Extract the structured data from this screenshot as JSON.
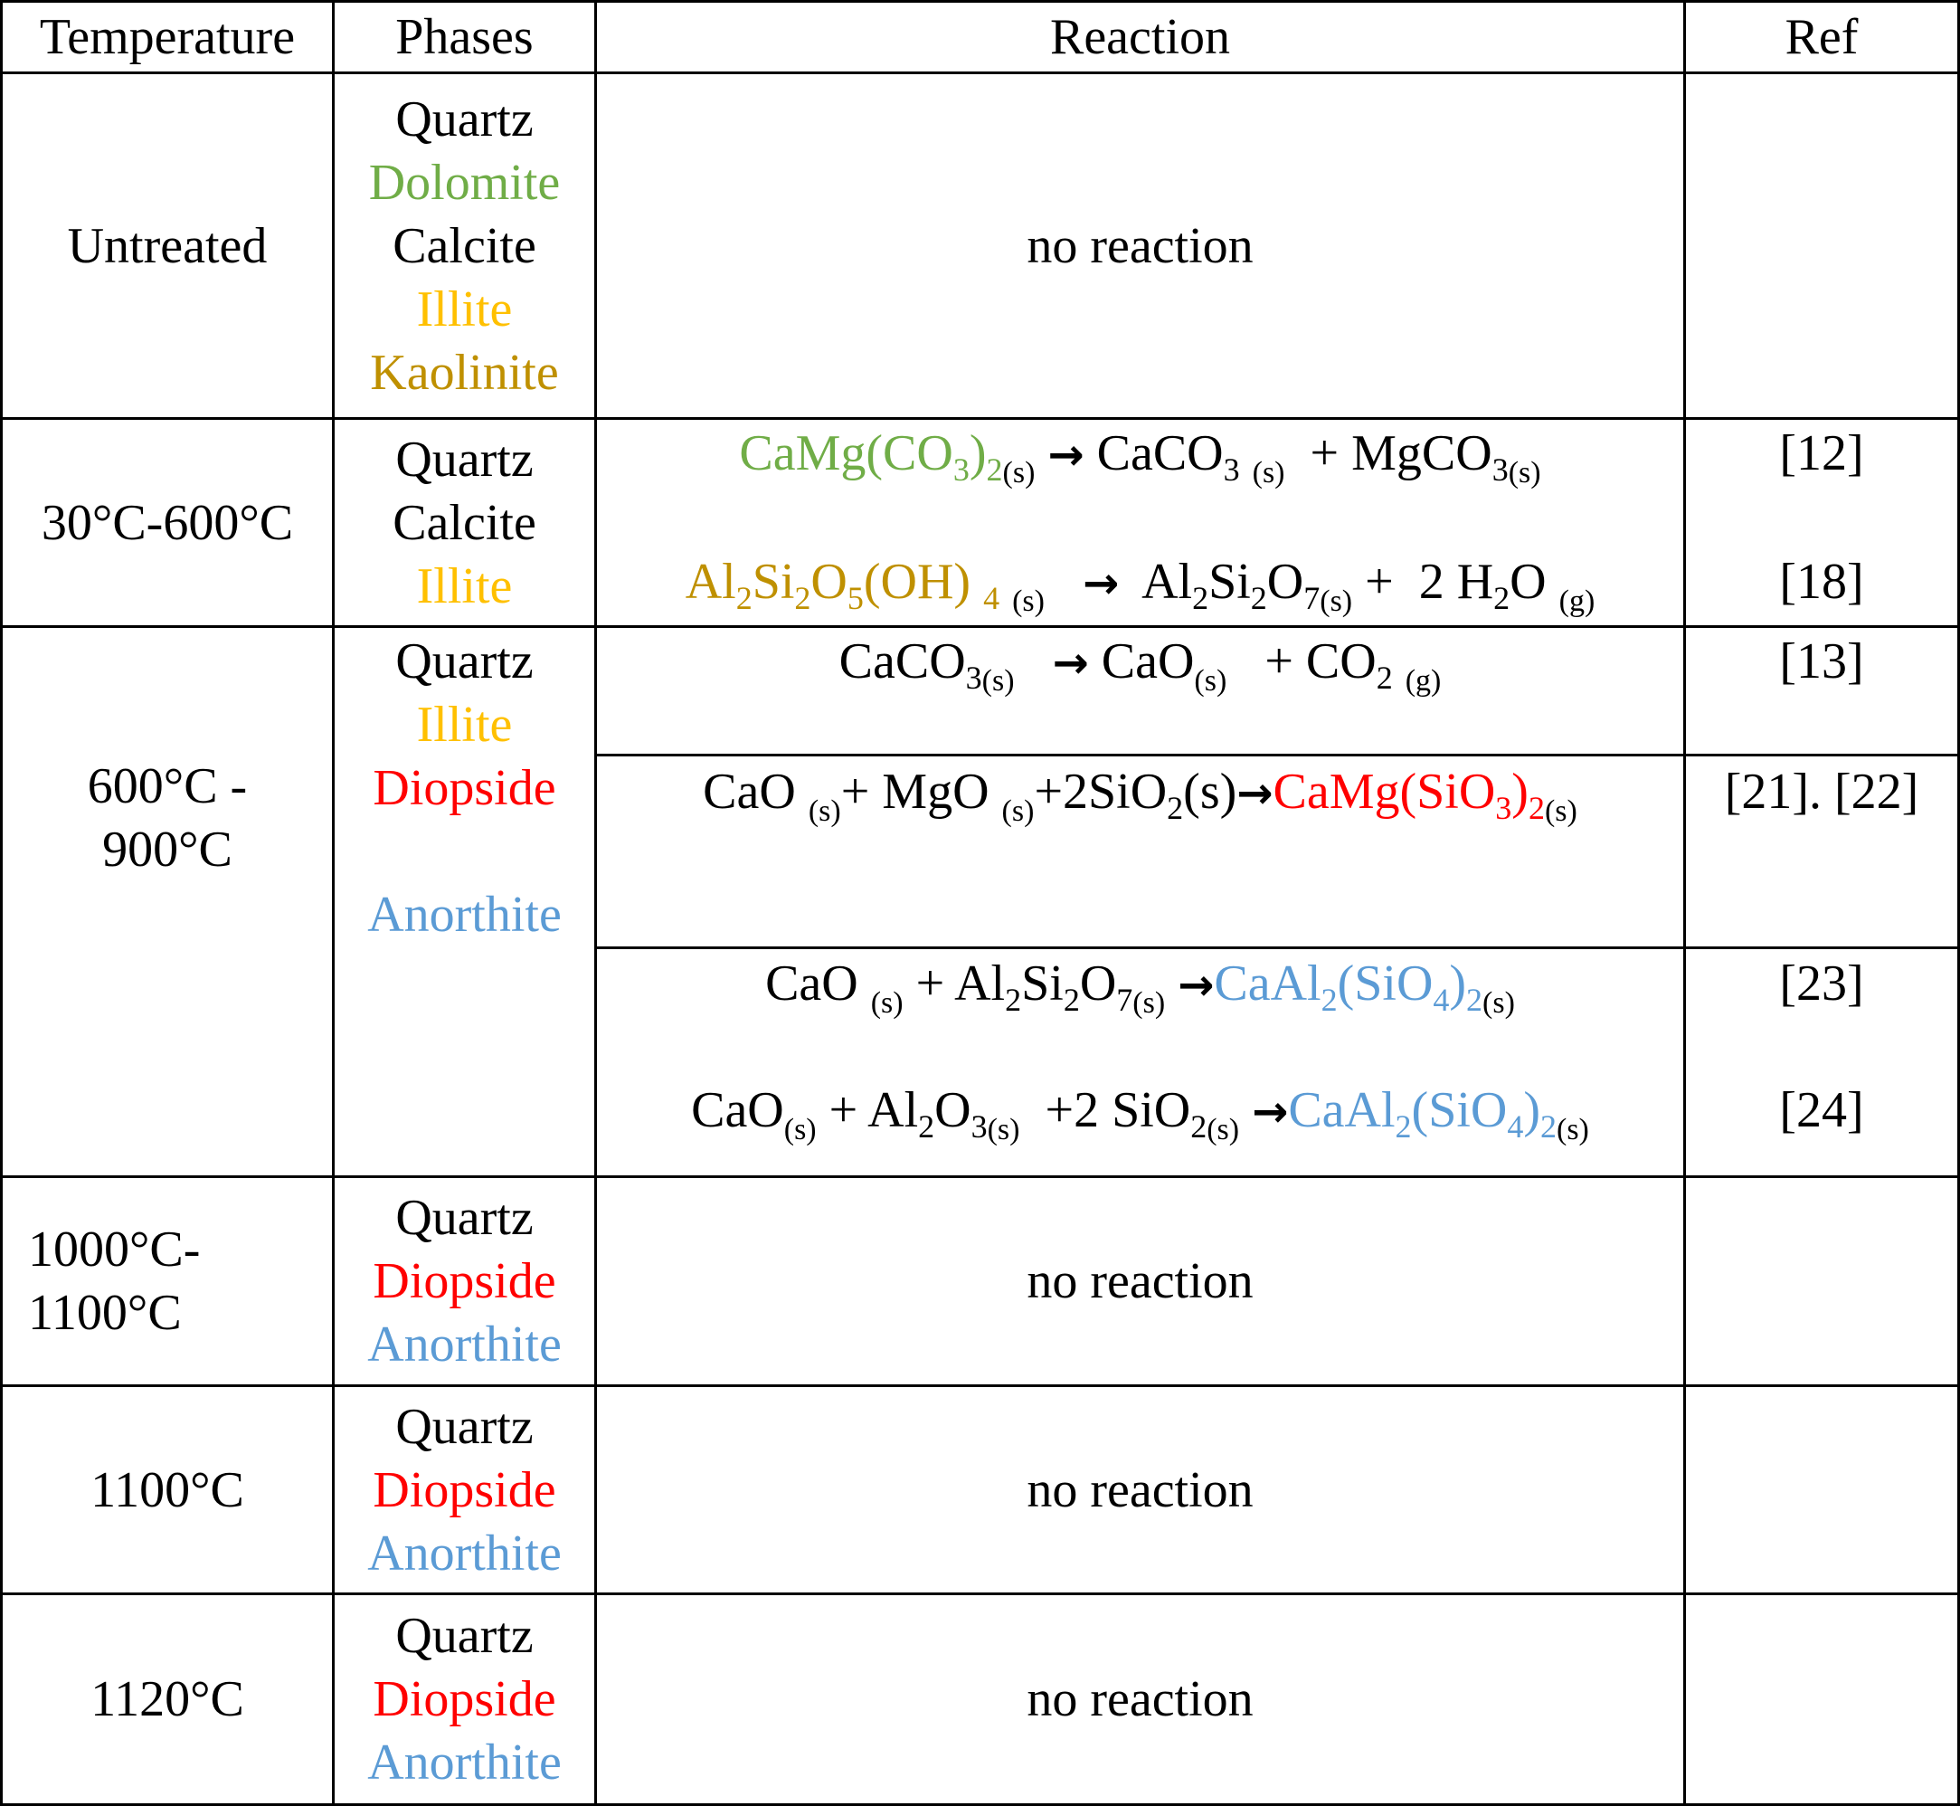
{
  "colors": {
    "dolomite": "#70ad47",
    "illite": "#ffc000",
    "kaolinite": "#bf9000",
    "diopside": "#ff0000",
    "anorthite": "#5b9bd5"
  },
  "header": {
    "temperature": "Temperature",
    "phases": "Phases",
    "reaction": "Reaction",
    "ref": "Ref"
  },
  "rows": [
    {
      "temperature": "Untreated",
      "phases": [
        "Quartz",
        "Dolomite",
        "Calcite",
        "Illite",
        "Kaolinite"
      ],
      "reaction": "no reaction"
    },
    {
      "temperature": "30°C-600°C",
      "phases": [
        "Quartz",
        "Calcite",
        "Illite"
      ],
      "reactions": [
        {
          "text": "CaMg(CO3)2(s) → CaCO3 (s) + MgCO3(s)",
          "ref": "[12]"
        },
        {
          "text": "Al2Si2O5(OH) 4 (s) → Al2Si2O7(s) + 2 H2O (g)",
          "ref": "[18]"
        }
      ]
    },
    {
      "temperature_lines": [
        "600°C -",
        "900°C"
      ],
      "phases": [
        "Quartz",
        "Illite",
        "Diopside",
        "Anorthite"
      ],
      "reactions": [
        {
          "text": "CaCO3(s) → CaO(s) + CO2 (g)",
          "ref": "[13]"
        },
        {
          "text": "CaO (s)+ MgO (s)+2SiO2(s)→CaMg(SiO3)2(s)",
          "ref": "[21]. [22]"
        },
        {
          "text": "CaO (s) + Al2Si2O7(s) →CaAl2(SiO4)2(s)",
          "ref": "[23]"
        },
        {
          "text": "CaO(s) + Al2O3(s) +2 SiO2(s) →CaAl2(SiO4)2(s)",
          "ref": "[24]"
        }
      ]
    },
    {
      "temperature_lines": [
        "1000°C-",
        "1100°C"
      ],
      "phases": [
        "Quartz",
        "Diopside",
        "Anorthite"
      ],
      "reaction": "no reaction"
    },
    {
      "temperature": "1100°C",
      "phases": [
        "Quartz",
        "Diopside",
        "Anorthite"
      ],
      "reaction": "no reaction"
    },
    {
      "temperature": "1120°C",
      "phases": [
        "Quartz",
        "Diopside",
        "Anorthite"
      ],
      "reaction": "no reaction"
    }
  ]
}
